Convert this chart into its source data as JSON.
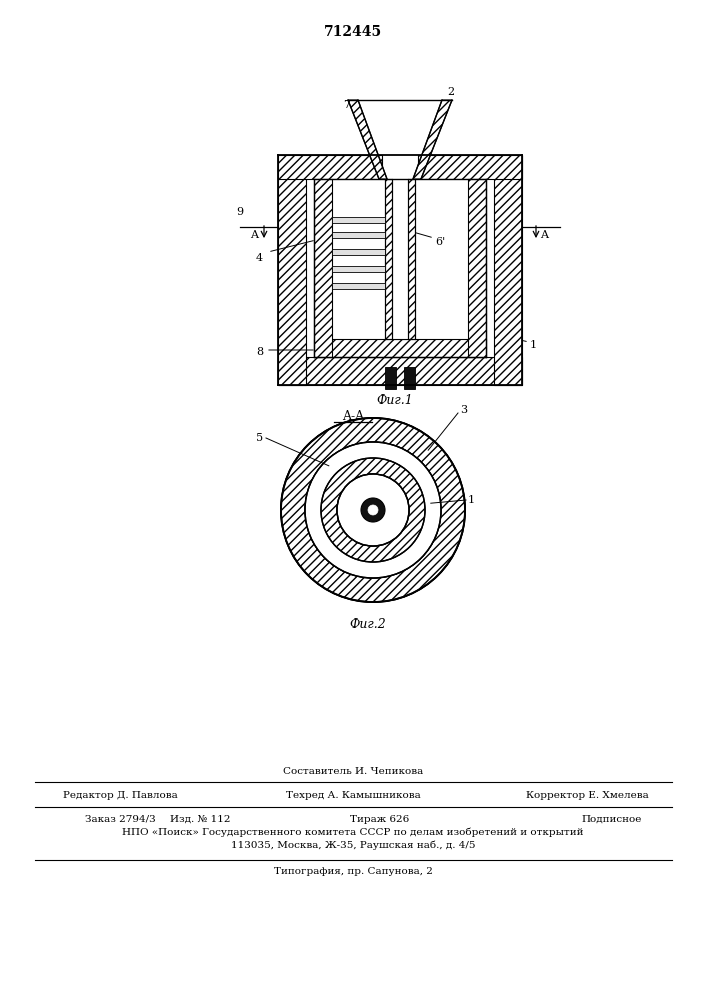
{
  "title": "712445",
  "fig1_label": "Фиг.1",
  "fig2_label": "Фиг.2",
  "section_label": "A-A",
  "background_color": "#ffffff",
  "line_color": "#000000",
  "footer_line1_center": "Составитель И. Чепикова",
  "footer_line2_left": "Редактор Д. Павлова",
  "footer_line2_center": "Техред А. Камышникова",
  "footer_line2_right": "Корректор Е. Хмелева",
  "footer_line3a": "Заказ 2794/3",
  "footer_line3b": "Изд. № 112",
  "footer_line3c": "Тираж 626",
  "footer_line3d": "Подписное",
  "footer_line4": "НПО «Поиск» Государственного комитета СССР по делам изобретений и открытий",
  "footer_line5": "113035, Москва, Ж-35, Раушская наб., д. 4/5",
  "footer_line6": "Типография, пр. Сапунова, 2",
  "label_9": "9",
  "label_A_left": "A",
  "label_A_right": "A",
  "label_7": "7",
  "label_2": "2",
  "label_4": "4",
  "label_6p": "6'",
  "label_1_fig1": "1",
  "label_8": "8",
  "label_5": "5",
  "label_3": "3",
  "label_1_fig2": "1"
}
